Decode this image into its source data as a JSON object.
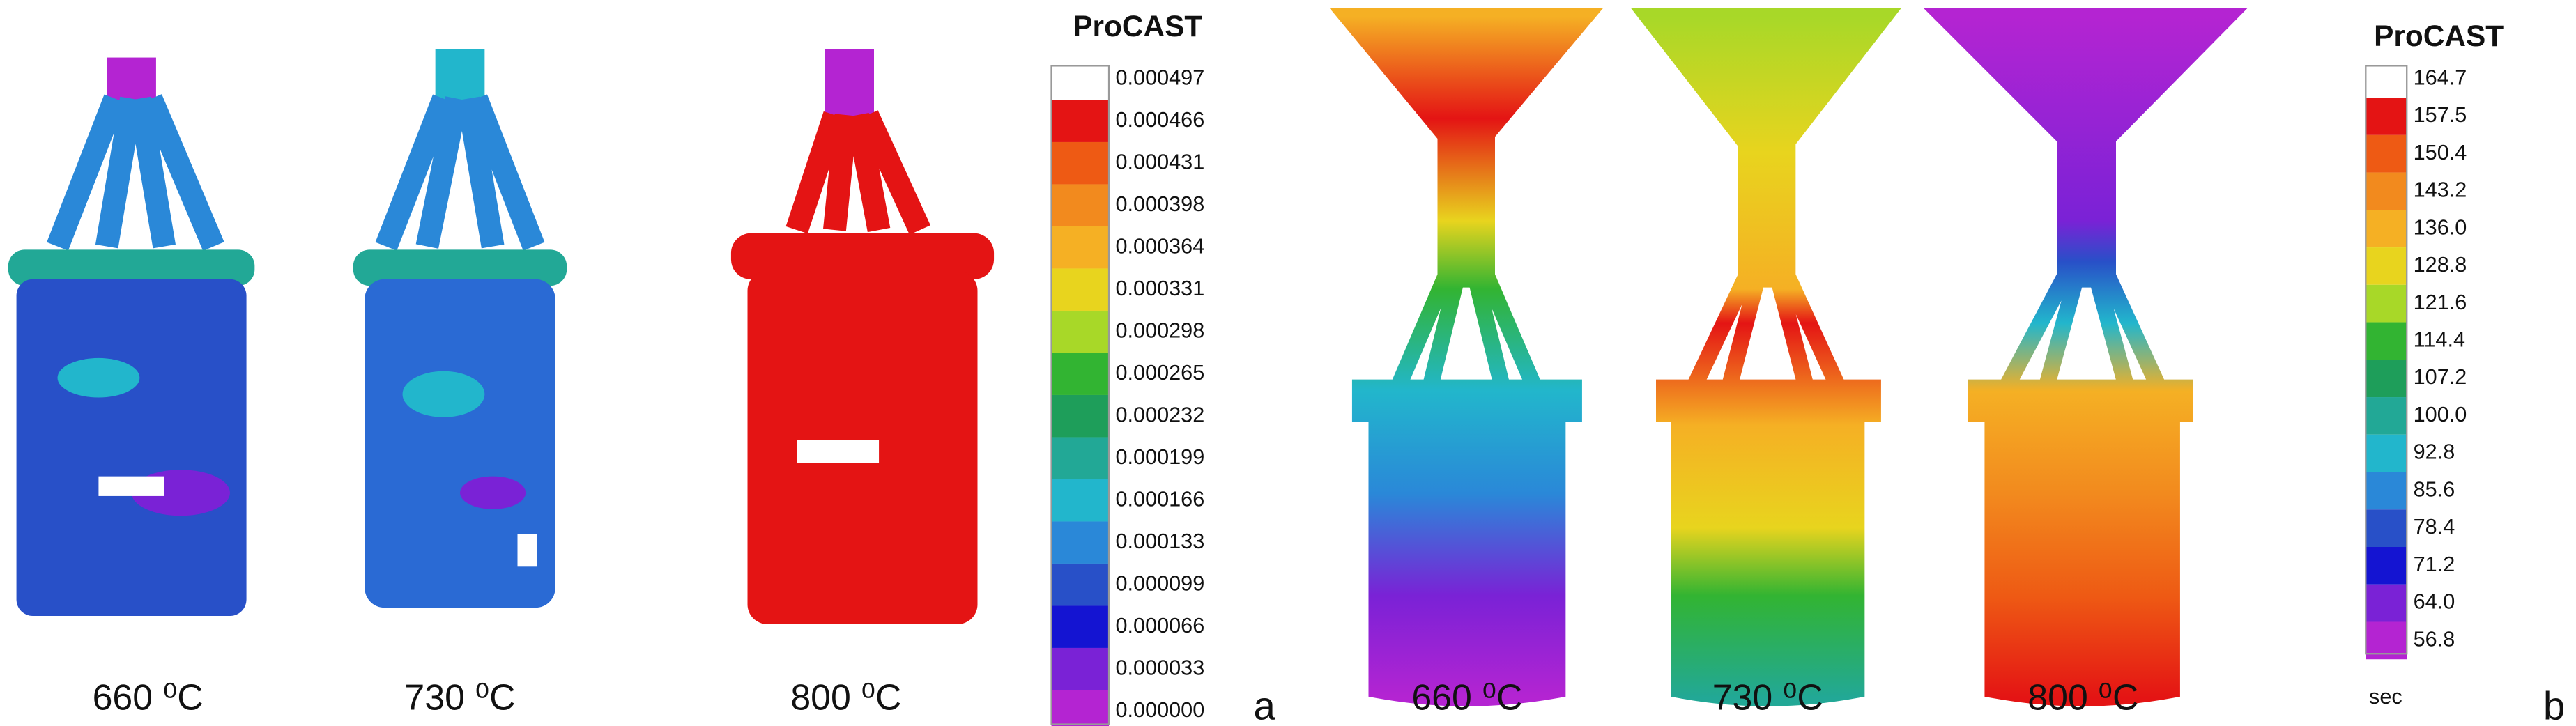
{
  "panel_a": {
    "samples": [
      "660 ⁰C",
      "730 ⁰C",
      "800 ⁰C"
    ],
    "label": "a",
    "legend": {
      "title": "ProCAST",
      "labels": [
        "0.000497",
        "0.000466",
        "0.000431",
        "0.000398",
        "0.000364",
        "0.000331",
        "0.000298",
        "0.000265",
        "0.000232",
        "0.000199",
        "0.000166",
        "0.000133",
        "0.000099",
        "0.000066",
        "0.000033",
        "0.000000"
      ],
      "colors": [
        "#e41414",
        "#ee5a14",
        "#f28a1e",
        "#f5b024",
        "#e8d41e",
        "#a8d828",
        "#32b432",
        "#1e9e5a",
        "#22a896",
        "#22b6cc",
        "#2a88d8",
        "#2850c8",
        "#1414d2",
        "#7a22d6",
        "#b424d2"
      ]
    }
  },
  "panel_b": {
    "samples": [
      "660 ⁰C",
      "730 ⁰C",
      "800 ⁰C"
    ],
    "label": "b",
    "legend": {
      "title": "ProCAST",
      "unit": "sec",
      "labels": [
        "164.7",
        "157.5",
        "150.4",
        "143.2",
        "136.0",
        "128.8",
        "121.6",
        "114.4",
        "107.2",
        "100.0",
        "92.8",
        "85.6",
        "78.4",
        "71.2",
        "64.0",
        "56.8"
      ],
      "colors": [
        "#e41414",
        "#ee5a14",
        "#f28a1e",
        "#f5b024",
        "#e8d41e",
        "#a8d828",
        "#32b432",
        "#1e9e5a",
        "#22a896",
        "#22b6cc",
        "#2a88d8",
        "#2850c8",
        "#1414d2",
        "#7a22d6",
        "#b424d2"
      ]
    }
  }
}
